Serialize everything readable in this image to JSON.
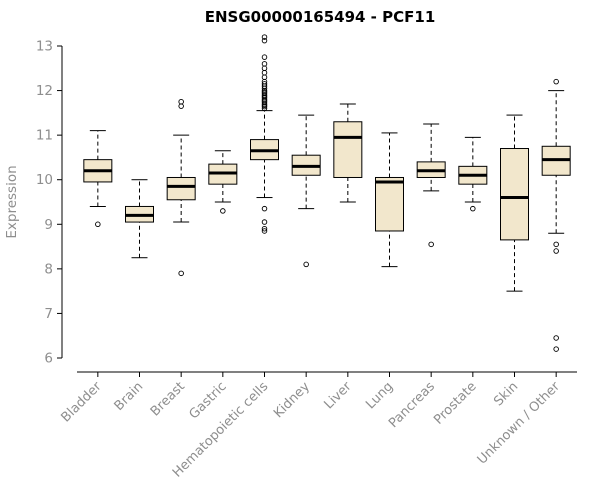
{
  "page": {
    "background": "#ffffff"
  },
  "chart_data": {
    "type": "boxplot",
    "title": "ENSG00000165494 - PCF11",
    "xlabel": "",
    "ylabel": "Expression",
    "ylim": [
      6,
      13
    ],
    "yticks": [
      6,
      7,
      8,
      9,
      10,
      11,
      12,
      13
    ],
    "grid": false,
    "legend": null,
    "colors": {
      "box_fill": "#F2E7CC",
      "box_stroke": "#000000",
      "median": "#000000",
      "axis_label": "#8e8e8e",
      "title": "#000000"
    },
    "categories": [
      "Bladder",
      "Brain",
      "Breast",
      "Gastric",
      "Hematopoietic cells",
      "Kidney",
      "Liver",
      "Lung",
      "Pancreas",
      "Prostate",
      "Skin",
      "Unknown / Other"
    ],
    "series": [
      {
        "category": "Bladder",
        "whislo": 9.4,
        "q1": 9.95,
        "median": 10.2,
        "q3": 10.45,
        "whishi": 11.1,
        "outliers": [
          9.0
        ]
      },
      {
        "category": "Brain",
        "whislo": 8.25,
        "q1": 9.05,
        "median": 9.2,
        "q3": 9.4,
        "whishi": 10.0,
        "outliers": []
      },
      {
        "category": "Breast",
        "whislo": 9.05,
        "q1": 9.55,
        "median": 9.85,
        "q3": 10.05,
        "whishi": 11.0,
        "outliers": [
          11.75,
          11.65,
          7.9
        ]
      },
      {
        "category": "Gastric",
        "whislo": 9.5,
        "q1": 9.9,
        "median": 10.15,
        "q3": 10.35,
        "whishi": 10.65,
        "outliers": [
          9.3
        ]
      },
      {
        "category": "Hematopoietic cells",
        "whislo": 9.6,
        "q1": 10.45,
        "median": 10.65,
        "q3": 10.9,
        "whishi": 11.55,
        "outliers": [
          13.2,
          13.12,
          12.75,
          12.6,
          12.5,
          12.4,
          12.3,
          12.2,
          12.15,
          12.1,
          12.05,
          12.0,
          11.97,
          11.94,
          11.9,
          11.87,
          11.84,
          11.8,
          11.77,
          11.74,
          11.7,
          11.67,
          11.64,
          11.6,
          9.35,
          9.05,
          8.9,
          8.85
        ]
      },
      {
        "category": "Kidney",
        "whislo": 9.35,
        "q1": 10.1,
        "median": 10.3,
        "q3": 10.55,
        "whishi": 11.45,
        "outliers": [
          8.1
        ]
      },
      {
        "category": "Liver",
        "whislo": 9.5,
        "q1": 10.05,
        "median": 10.95,
        "q3": 11.3,
        "whishi": 11.7,
        "outliers": []
      },
      {
        "category": "Lung",
        "whislo": 8.05,
        "q1": 8.85,
        "median": 9.95,
        "q3": 10.05,
        "whishi": 11.05,
        "outliers": []
      },
      {
        "category": "Pancreas",
        "whislo": 9.75,
        "q1": 10.05,
        "median": 10.2,
        "q3": 10.4,
        "whishi": 11.25,
        "outliers": [
          8.55
        ]
      },
      {
        "category": "Prostate",
        "whislo": 9.5,
        "q1": 9.9,
        "median": 10.1,
        "q3": 10.3,
        "whishi": 10.95,
        "outliers": [
          9.35
        ]
      },
      {
        "category": "Skin",
        "whislo": 7.5,
        "q1": 8.65,
        "median": 9.6,
        "q3": 10.7,
        "whishi": 11.45,
        "outliers": []
      },
      {
        "category": "Unknown / Other",
        "whislo": 8.8,
        "q1": 10.1,
        "median": 10.45,
        "q3": 10.75,
        "whishi": 12.0,
        "outliers": [
          12.2,
          8.55,
          8.4,
          6.45,
          6.2
        ]
      }
    ]
  }
}
